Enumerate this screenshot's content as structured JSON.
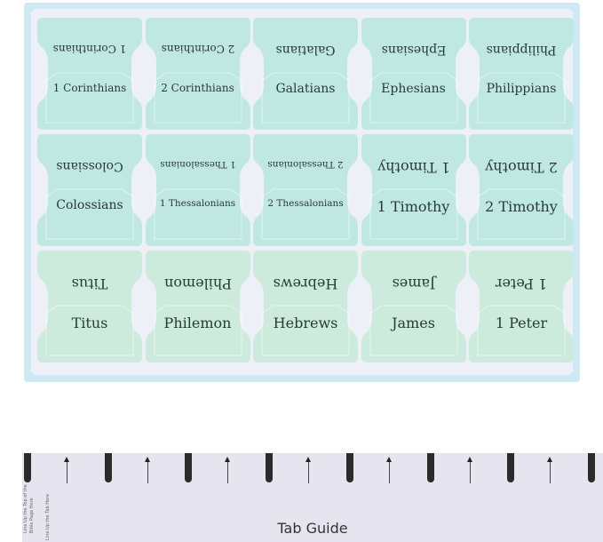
{
  "colors": {
    "tab_teal": "#bfe8e1",
    "tab_green": "#cdebdc",
    "sheet_border": "#cfe9f4",
    "guide": "#e6e4ee"
  },
  "tabs": [
    {
      "label": "1 Corinthians",
      "size": 12
    },
    {
      "label": "2 Corinthians",
      "size": 12
    },
    {
      "label": "Galatians",
      "size": 14
    },
    {
      "label": "Ephesians",
      "size": 14
    },
    {
      "label": "Philippians",
      "size": 14
    },
    {
      "label": "Colossians",
      "size": 14
    },
    {
      "label": "1 Thessalonians",
      "size": 10.5
    },
    {
      "label": "2 Thessalonians",
      "size": 10.5
    },
    {
      "label": "1 Timothy",
      "size": 16
    },
    {
      "label": "2 Timothy",
      "size": 16
    },
    {
      "label": "Titus",
      "size": 16
    },
    {
      "label": "Philemon",
      "size": 16
    },
    {
      "label": "Hebrews",
      "size": 16
    },
    {
      "label": "James",
      "size": 16
    },
    {
      "label": "1 Peter",
      "size": 16
    }
  ],
  "guide": {
    "title": "Tab Guide",
    "side_text_1": "Line Up the Top of the",
    "side_text_2": "Bible Page Here",
    "side_text_3": "Line Up the Tab Here"
  }
}
